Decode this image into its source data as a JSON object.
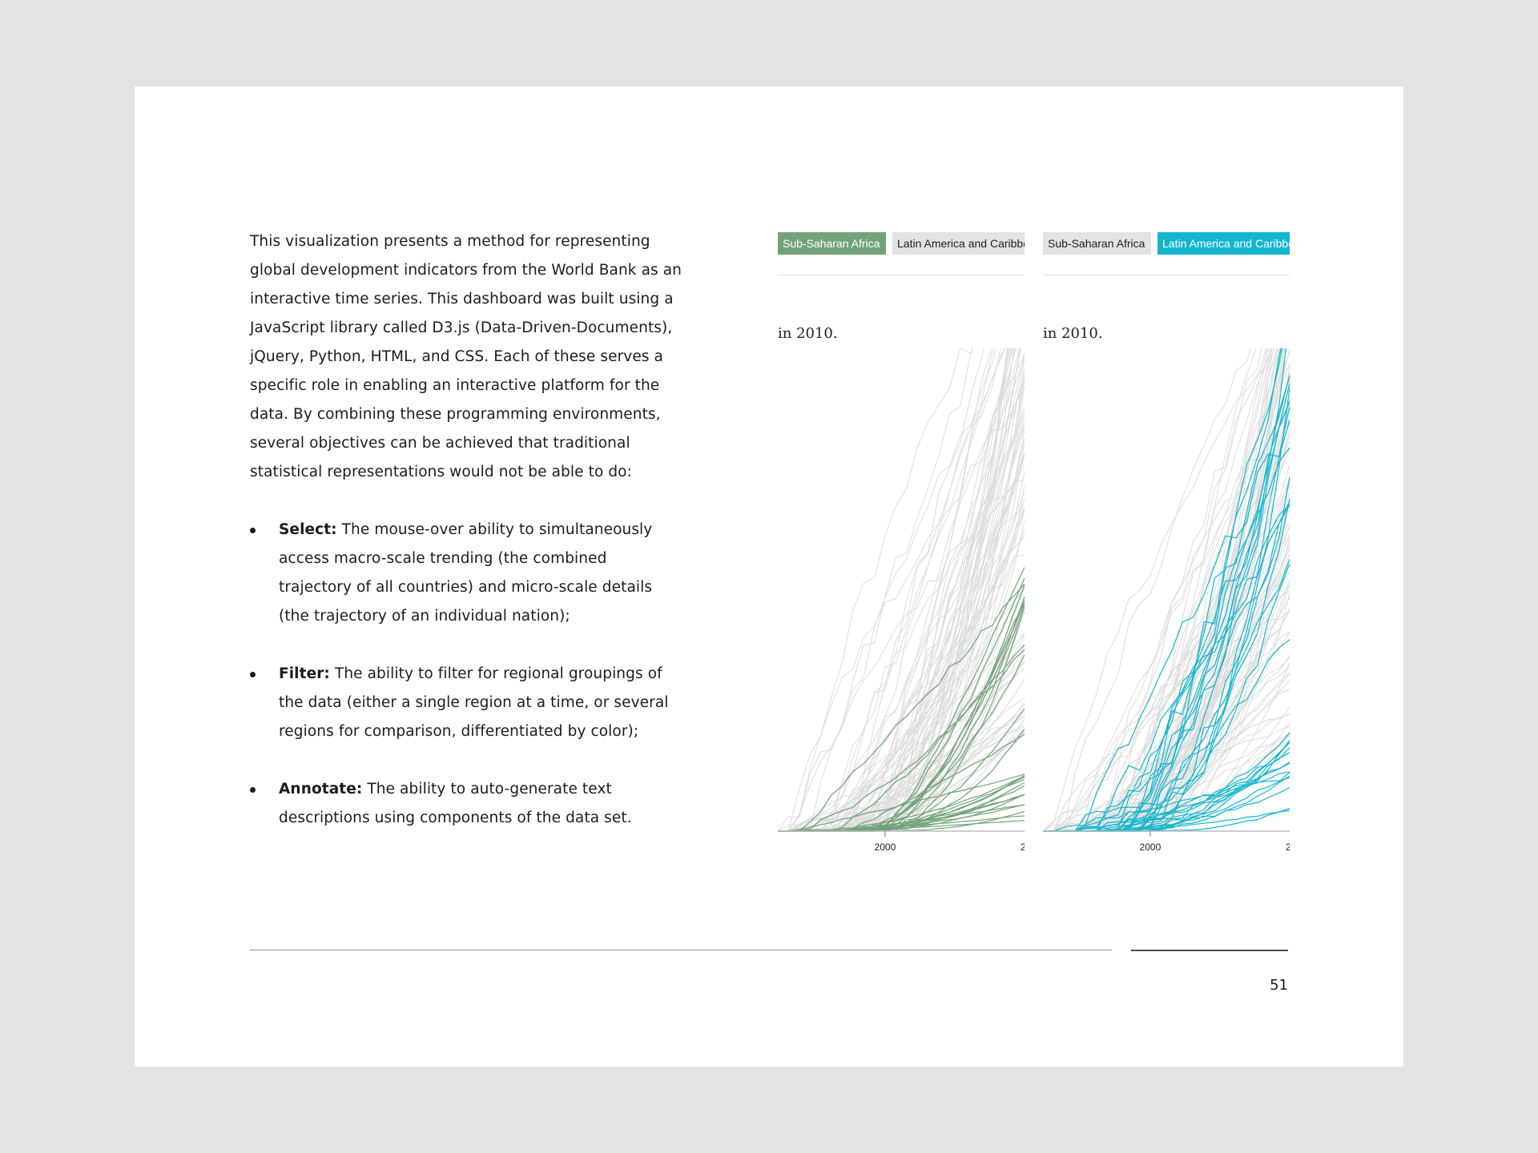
{
  "intro": "This visualization presents a method for representing global development indicators from the World Bank as an interactive time series. This dashboard was built using a JavaScript library called D3.js (Data-Driven-Documents), jQuery, Python, HTML, and CSS. Each of these serves a specific role in enabling an interactive platform for the data. By combining these programming environments, several objectives can be achieved that traditional statistical representations would not be able to do:",
  "bullets": [
    {
      "term": "Select:",
      "text": " The mouse-over ability to simultaneously access macro-scale trending (the combined trajectory of all countries) and micro-scale details (the trajectory of an individual nation);"
    },
    {
      "term": "Filter:",
      "text": " The ability to filter for regional groupings of the data (either a single region at a time, or several regions for comparison, differentiated by color);"
    },
    {
      "term": "Annotate:",
      "text": " The ability to auto-generate text descriptions using components of the data set."
    }
  ],
  "page_number": "51",
  "colors": {
    "sub_saharan_africa": "#72a378",
    "latin_america": "#14b6cf",
    "background_lines": "#dcdcdc",
    "inactive_button": "#e3e3e3"
  },
  "chart_data": [
    {
      "type": "line",
      "title": "",
      "caption": "in 2010.",
      "buttons": [
        {
          "label": "Sub-Saharan Africa",
          "active": true
        },
        {
          "label": "Latin America and Caribbean",
          "active": false
        }
      ],
      "highlighted_series": "Sub-Saharan Africa",
      "highlight_color": "#72a378",
      "x_tick_labels": [
        "2000",
        "2"
      ],
      "xlim": [
        1990,
        2013
      ],
      "ylim": [
        0,
        100
      ],
      "background_series_count": 90,
      "highlighted_series_count": 30,
      "seed": 11
    },
    {
      "type": "line",
      "title": "",
      "caption": "in 2010.",
      "buttons": [
        {
          "label": "Sub-Saharan Africa",
          "active": false
        },
        {
          "label": "Latin America and Caribbean",
          "active": true
        }
      ],
      "highlighted_series": "Latin America and Caribbean",
      "highlight_color": "#14b6cf",
      "x_tick_labels": [
        "2000",
        "2"
      ],
      "xlim": [
        1990,
        2013
      ],
      "ylim": [
        0,
        100
      ],
      "background_series_count": 90,
      "highlighted_series_count": 35,
      "seed": 29
    }
  ]
}
